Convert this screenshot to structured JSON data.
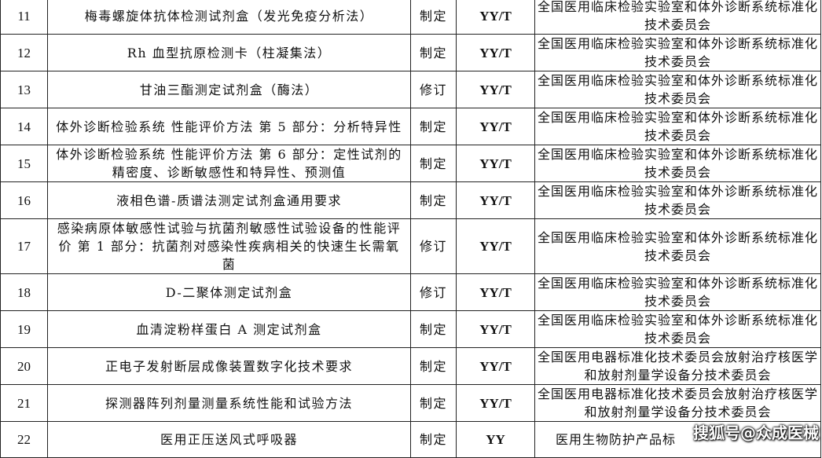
{
  "rows": [
    {
      "no": "11",
      "name": "梅毒螺旋体抗体检测试剂盒（发光免疫分析法）",
      "type": "制定",
      "code": "YY/T",
      "committee": "全国医用临床检验实验室和体外诊断系统标准化技术委员会"
    },
    {
      "no": "12",
      "name": "Rh 血型抗原检测卡（柱凝集法）",
      "type": "制定",
      "code": "YY/T",
      "committee": "全国医用临床检验实验室和体外诊断系统标准化技术委员会"
    },
    {
      "no": "13",
      "name": "甘油三酯测定试剂盒（酶法）",
      "type": "修订",
      "code": "YY/T",
      "committee": "全国医用临床检验实验室和体外诊断系统标准化技术委员会"
    },
    {
      "no": "14",
      "name": "体外诊断检验系统 性能评价方法 第 5 部分：分析特异性",
      "type": "制定",
      "code": "YY/T",
      "committee": "全国医用临床检验实验室和体外诊断系统标准化技术委员会"
    },
    {
      "no": "15",
      "name": "体外诊断检验系统 性能评价方法 第 6 部分：定性试剂的精密度、诊断敏感性和特异性、预测值",
      "type": "制定",
      "code": "YY/T",
      "committee": "全国医用临床检验实验室和体外诊断系统标准化技术委员会"
    },
    {
      "no": "16",
      "name": "液相色谱-质谱法测定试剂盒通用要求",
      "type": "制定",
      "code": "YY/T",
      "committee": "全国医用临床检验实验室和体外诊断系统标准化技术委员会"
    },
    {
      "no": "17",
      "name": "感染病原体敏感性试验与抗菌剂敏感性试验设备的性能评价 第 1 部分：抗菌剂对感染性疾病相关的快速生长需氧菌",
      "type": "修订",
      "code": "YY/T",
      "committee": "全国医用临床检验实验室和体外诊断系统标准化技术委员会"
    },
    {
      "no": "18",
      "name": "D-二聚体测定试剂盒",
      "type": "修订",
      "code": "YY/T",
      "committee": "全国医用临床检验实验室和体外诊断系统标准化技术委员会"
    },
    {
      "no": "19",
      "name": "血清淀粉样蛋白 A 测定试剂盒",
      "type": "制定",
      "code": "YY/T",
      "committee": "全国医用临床检验实验室和体外诊断系统标准化技术委员会"
    },
    {
      "no": "20",
      "name": "正电子发射断层成像装置数字化技术要求",
      "type": "制定",
      "code": "YY/T",
      "committee": "全国医用电器标准化技术委员会放射治疗核医学和放射剂量学设备分技术委员会"
    },
    {
      "no": "21",
      "name": "探测器阵列剂量测量系统性能和试验方法",
      "type": "制定",
      "code": "YY/T",
      "committee": "全国医用电器标准化技术委员会放射治疗核医学和放射剂量学设备分技术委员会"
    },
    {
      "no": "22",
      "name": "医用正压送风式呼吸器",
      "type": "制定",
      "code": "YY",
      "committee": "医用生物防护产品标"
    }
  ],
  "watermark": "搜狐号@众成医械"
}
